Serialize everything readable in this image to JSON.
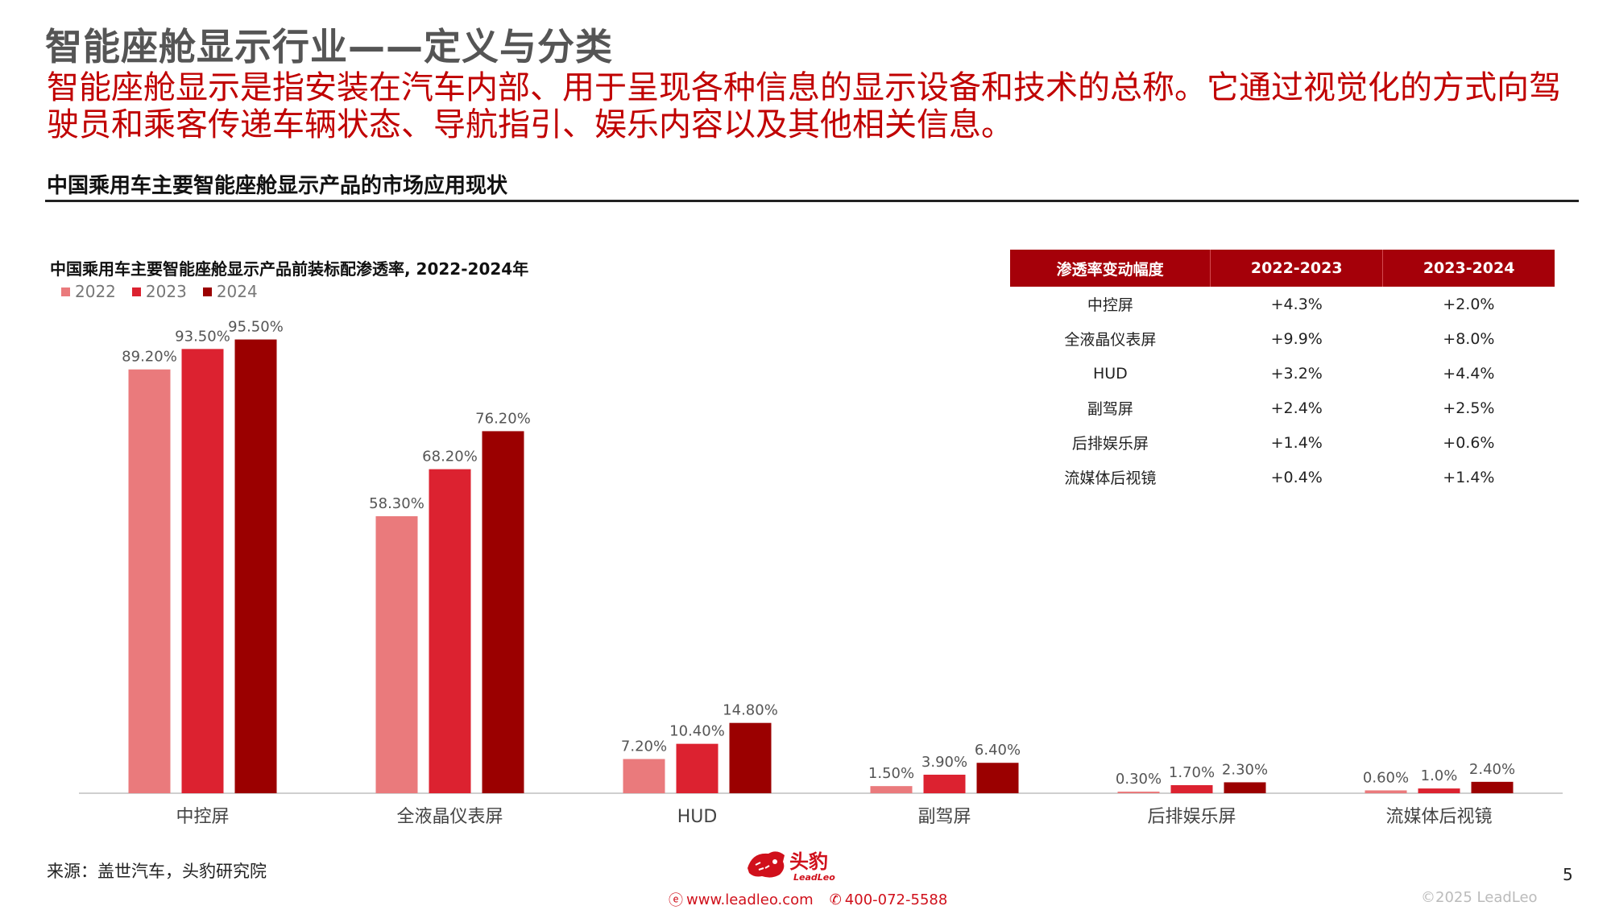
{
  "page": {
    "title": "智能座舱显示行业——定义与分类",
    "description": "智能座舱显示是指安装在汽车内部、用于呈现各种信息的显示设备和技术的总称。它通过视觉化的方式向驾驶员和乘客传递车辆状态、导航指引、娱乐内容以及其他相关信息。",
    "section_title": "中国乘用车主要智能座舱显示产品的市场应用现状",
    "page_number": "5"
  },
  "legend": [
    {
      "label": "2022",
      "color": "#ea7a7c"
    },
    {
      "label": "2023",
      "color": "#dc2230"
    },
    {
      "label": "2024",
      "color": "#9b0000"
    }
  ],
  "chart_data": {
    "type": "bar",
    "title": "中国乘用车主要智能座舱显示产品前装标配渗透率, 2022-2024年",
    "xlabel": "",
    "ylabel": "",
    "ylim": [
      0,
      100
    ],
    "grid": false,
    "legend_position": "top-left",
    "categories": [
      "中控屏",
      "全液晶仪表屏",
      "HUD",
      "副驾屏",
      "后排娱乐屏",
      "流媒体后视镜"
    ],
    "series": [
      {
        "name": "2022",
        "color": "#ea7a7c",
        "values": [
          89.2,
          58.3,
          7.2,
          1.5,
          0.3,
          0.6
        ],
        "labels": [
          "89.20%",
          "58.30%",
          "7.20%",
          "1.50%",
          "0.30%",
          "0.60%"
        ]
      },
      {
        "name": "2023",
        "color": "#dc2230",
        "values": [
          93.5,
          68.2,
          10.4,
          3.9,
          1.7,
          1.0
        ],
        "labels": [
          "93.50%",
          "68.20%",
          "10.40%",
          "3.90%",
          "1.70%",
          "1.0%"
        ]
      },
      {
        "name": "2024",
        "color": "#9b0000",
        "values": [
          95.5,
          76.2,
          14.8,
          6.4,
          2.3,
          2.4
        ],
        "labels": [
          "95.50%",
          "76.20%",
          "14.80%",
          "6.40%",
          "2.30%",
          "2.40%"
        ]
      }
    ]
  },
  "change_table": {
    "headers": [
      "渗透率变动幅度",
      "2022-2023",
      "2023-2024"
    ],
    "rows": [
      [
        "中控屏",
        "+4.3%",
        "+2.0%"
      ],
      [
        "全液晶仪表屏",
        "+9.9%",
        "+8.0%"
      ],
      [
        "HUD",
        "+3.2%",
        "+4.4%"
      ],
      [
        "副驾屏",
        "+2.4%",
        "+2.5%"
      ],
      [
        "后排娱乐屏",
        "+1.4%",
        "+0.6%"
      ],
      [
        "流媒体后视镜",
        "+0.4%",
        "+1.4%"
      ]
    ]
  },
  "footer": {
    "source": "来源：盖世汽车，头豹研究院",
    "logo_name": "头豹",
    "logo_sub": "LeadLeo",
    "website": "www.leadleo.com",
    "phone": "400-072-5588",
    "copyright": "©2025 LeadLeo"
  },
  "colors": {
    "accent": "#c00000",
    "table_header": "#a50009"
  }
}
